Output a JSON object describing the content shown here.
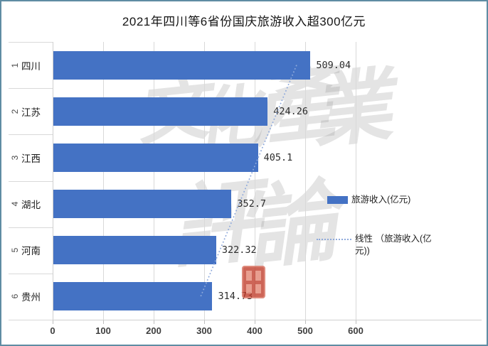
{
  "title": "2021年四川等6省份国庆旅游收入超300亿元",
  "chart_data": {
    "type": "bar",
    "orientation": "horizontal",
    "title": "2021年四川等6省份国庆旅游收入超300亿元",
    "ranks": [
      "1",
      "2",
      "3",
      "4",
      "5",
      "6"
    ],
    "categories": [
      "四川",
      "江苏",
      "江西",
      "湖北",
      "河南",
      "贵州"
    ],
    "values": [
      509.04,
      424.26,
      405.1,
      352.7,
      322.32,
      314.73
    ],
    "value_labels": [
      "509.04",
      "424.26",
      "405.1",
      "352.7",
      "322.32",
      "314.73"
    ],
    "series_name": "旅游收入(亿元)",
    "trendline_name": "线性（旅游收入(亿元))",
    "xlim": [
      0,
      600
    ],
    "x_ticks": [
      0,
      100,
      200,
      300,
      400,
      500,
      600
    ],
    "grid": true,
    "legend_position": "right-middle",
    "bar_color": "#4472C4",
    "trendline_color": "#8EA9DB"
  },
  "legend": {
    "series_label": "旅游收入(亿元)",
    "trend_label_line1": "线性 （旅游收入(亿",
    "trend_label_line2": "元))"
  },
  "watermark": {
    "text": "文化產業評論",
    "chars": [
      "文",
      "化",
      "產",
      "業",
      "評",
      "論"
    ],
    "seal_color": "#BF3A28"
  },
  "colors": {
    "bar": "#4472C4",
    "trendline": "#8EA9DB",
    "gridline": "#D9D9D9",
    "border": "#5F8CA3"
  }
}
